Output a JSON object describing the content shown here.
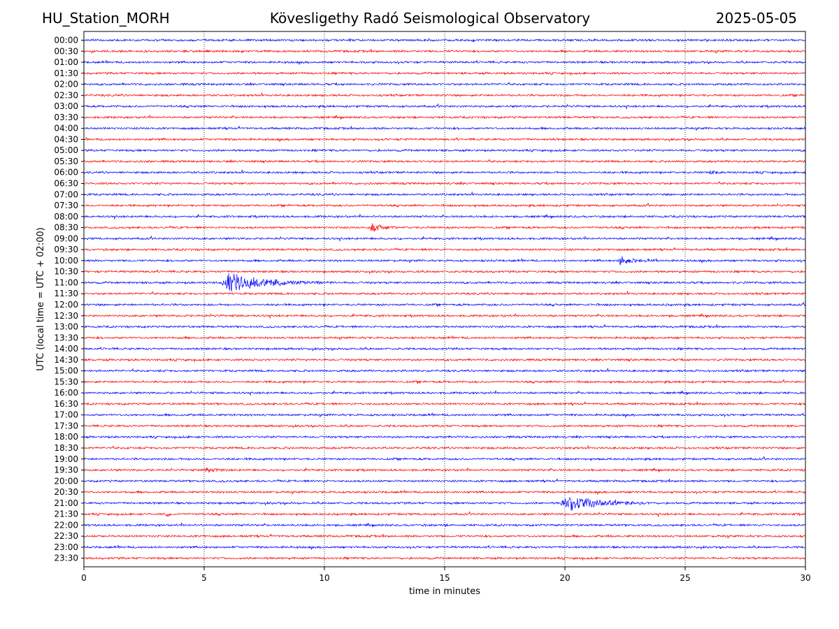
{
  "header": {
    "station": "HU_Station_MORH",
    "observatory": "Kövesligethy Radó Seismological Observatory",
    "date": "2025-05-05"
  },
  "chart_data": {
    "type": "line",
    "title": "Kövesligethy Radó Seismological Observatory",
    "xlabel": "time in minutes",
    "ylabel": "UTC (local time = UTC + 02:00)",
    "xlim": [
      0,
      30
    ],
    "x_ticks": [
      0,
      5,
      10,
      15,
      20,
      25,
      30
    ],
    "grid": "vertical dotted at each x tick",
    "row_labels": [
      "00:00",
      "00:30",
      "01:00",
      "01:30",
      "02:00",
      "02:30",
      "03:00",
      "03:30",
      "04:00",
      "04:30",
      "05:00",
      "05:30",
      "06:00",
      "06:30",
      "07:00",
      "07:30",
      "08:00",
      "08:30",
      "09:00",
      "09:30",
      "10:00",
      "10:30",
      "11:00",
      "11:30",
      "12:00",
      "12:30",
      "13:00",
      "13:30",
      "14:00",
      "14:30",
      "15:00",
      "15:30",
      "16:00",
      "16:30",
      "17:00",
      "17:30",
      "18:00",
      "18:30",
      "19:00",
      "19:30",
      "20:00",
      "20:30",
      "21:00",
      "21:30",
      "22:00",
      "22:30",
      "23:00",
      "23:30"
    ],
    "trace_colors": [
      "#0000ff",
      "#ff0000"
    ],
    "events": [
      {
        "row": "08:30",
        "start_min": 11.9,
        "end_min": 13.0,
        "amplitude": 0.55
      },
      {
        "row": "10:00",
        "start_min": 22.2,
        "end_min": 23.8,
        "amplitude": 0.45
      },
      {
        "row": "11:00",
        "start_min": 5.7,
        "end_min": 10.3,
        "amplitude": 0.95
      },
      {
        "row": "21:00",
        "start_min": 19.8,
        "end_min": 23.5,
        "amplitude": 0.9
      },
      {
        "row": "21:30",
        "start_min": 3.4,
        "end_min": 3.7,
        "amplitude": 0.5
      },
      {
        "row": "19:30",
        "start_min": 5.0,
        "end_min": 6.0,
        "amplitude": 0.25
      },
      {
        "row": "06:00",
        "start_min": 26.0,
        "end_min": 26.5,
        "amplitude": 0.3
      }
    ]
  }
}
